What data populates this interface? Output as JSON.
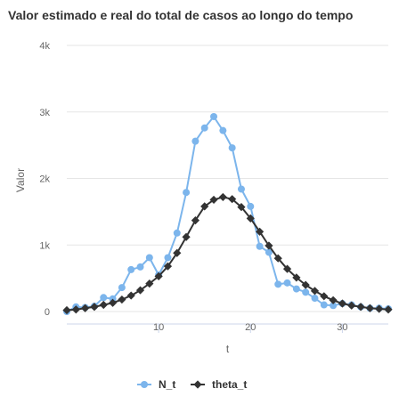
{
  "chart_data": {
    "type": "line",
    "title": "Valor estimado e real do total de casos ao longo do tempo",
    "xlabel": "t",
    "ylabel": "Valor",
    "xlim": [
      0,
      35
    ],
    "ylim": [
      0,
      4000
    ],
    "x_ticks": [
      10,
      20,
      30
    ],
    "x_tick_labels": [
      "10",
      "20",
      "30"
    ],
    "y_ticks": [
      0,
      1000,
      2000,
      3000,
      4000
    ],
    "y_tick_labels": [
      "0",
      "1k",
      "2k",
      "3k",
      "4k"
    ],
    "grid": true,
    "legend_position": "bottom-center",
    "x": [
      0,
      1,
      2,
      3,
      4,
      5,
      6,
      7,
      8,
      9,
      10,
      11,
      12,
      13,
      14,
      15,
      16,
      17,
      18,
      19,
      20,
      21,
      22,
      23,
      24,
      25,
      26,
      27,
      28,
      29,
      30,
      31,
      32,
      33,
      34,
      35
    ],
    "series": [
      {
        "name": "N_t",
        "color": "#7cb5ec",
        "marker": "circle",
        "values": [
          0,
          70,
          60,
          80,
          210,
          190,
          360,
          630,
          670,
          810,
          550,
          810,
          1180,
          1790,
          2560,
          2760,
          2930,
          2720,
          2460,
          1840,
          1580,
          980,
          890,
          410,
          430,
          340,
          290,
          200,
          100,
          90,
          120,
          100,
          70,
          50,
          50,
          40
        ]
      },
      {
        "name": "theta_t",
        "color": "#333333",
        "marker": "diamond",
        "values": [
          20,
          30,
          50,
          70,
          100,
          130,
          180,
          240,
          320,
          420,
          530,
          680,
          880,
          1120,
          1370,
          1580,
          1680,
          1720,
          1690,
          1570,
          1400,
          1200,
          990,
          800,
          640,
          510,
          400,
          310,
          230,
          170,
          120,
          90,
          70,
          50,
          40,
          30
        ]
      }
    ]
  }
}
